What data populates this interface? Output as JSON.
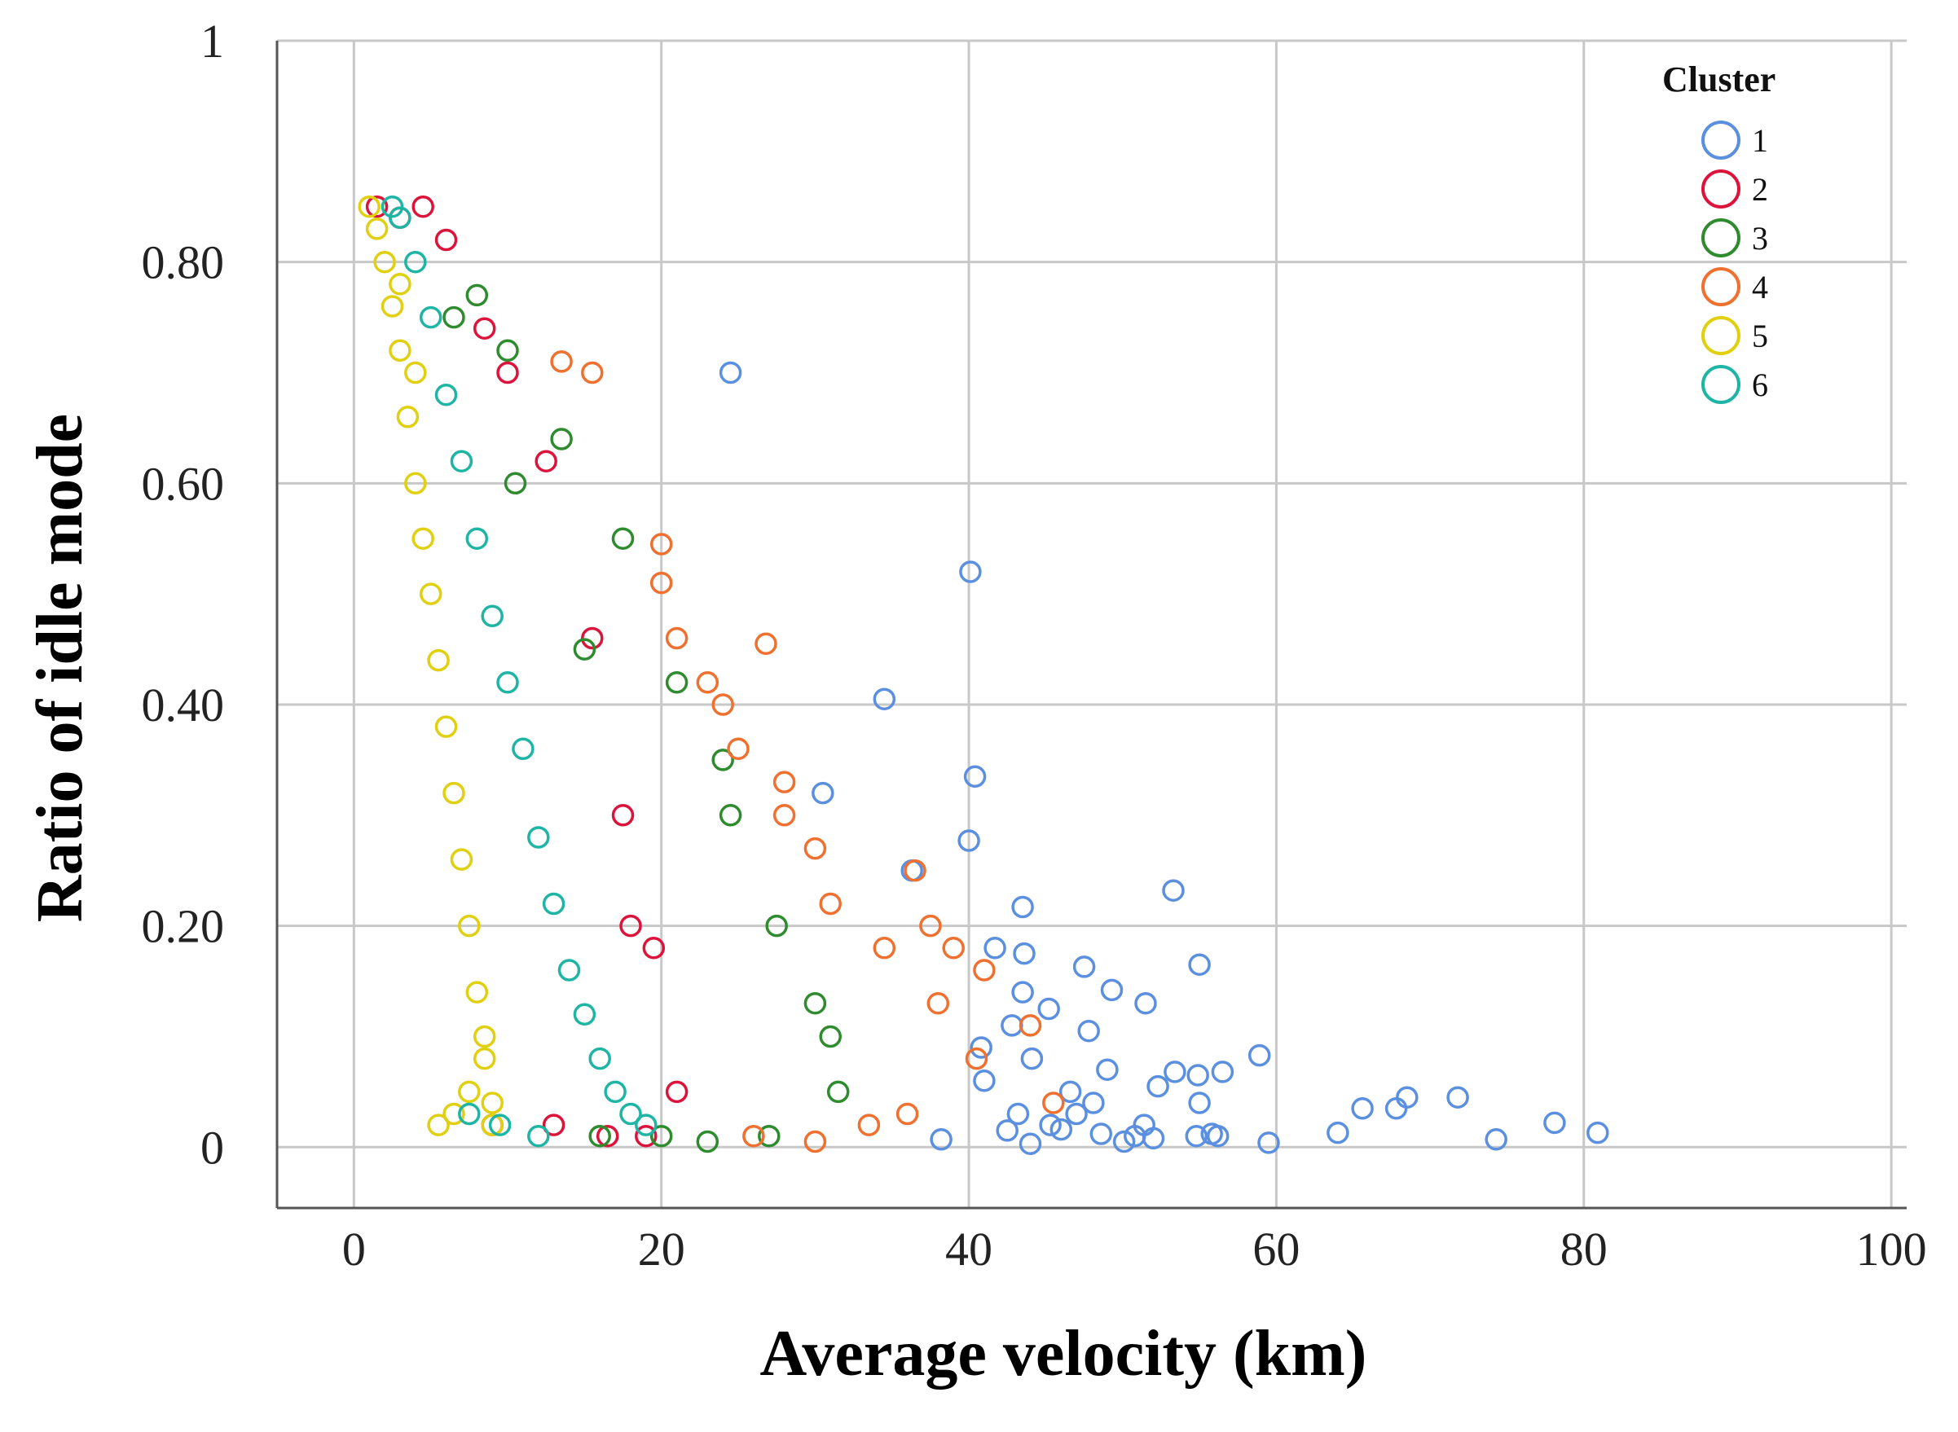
{
  "chart_data": {
    "type": "scatter",
    "title": "",
    "xlabel": "Average velocity (km)",
    "ylabel": "Ratio of idle mode",
    "xlim": [
      -5,
      101
    ],
    "ylim": [
      -0.055,
      1
    ],
    "x_ticks": [
      0,
      20,
      40,
      60,
      80,
      100
    ],
    "x_tick_labels": [
      "0",
      "20",
      "40",
      "60",
      "80",
      "100"
    ],
    "y_ticks": [
      0,
      0.2,
      0.4,
      0.6,
      0.8,
      1
    ],
    "y_tick_labels": [
      "0",
      "0.20",
      "0.40",
      "0.60",
      "0.80",
      "1"
    ],
    "grid": true,
    "marker": "hollow-circle",
    "legend": {
      "title": "Cluster",
      "position": "top-right",
      "items": [
        {
          "label": "1",
          "color": "#5b8fe0"
        },
        {
          "label": "2",
          "color": "#dc143c"
        },
        {
          "label": "3",
          "color": "#2e8b2e"
        },
        {
          "label": "4",
          "color": "#f07030"
        },
        {
          "label": "5",
          "color": "#e0d010"
        },
        {
          "label": "6",
          "color": "#1fb5a5"
        }
      ]
    },
    "series": [
      {
        "name": "1",
        "color": "#5b8fe0",
        "x": [
          24.5,
          40.1,
          34.5,
          30.5,
          40.4,
          40.0,
          36.3,
          43.5,
          53.3,
          55.0,
          47.5,
          43.5,
          51.5,
          49.3,
          45.2,
          47.8,
          58.9,
          56.5,
          54.9,
          53.4,
          49.0,
          52.3,
          42.8,
          44.1,
          46.6,
          48.1,
          40.8,
          51.4,
          55.0,
          68.5,
          71.8,
          67.8,
          65.6,
          78.1,
          80.9,
          74.3,
          64.0,
          59.5,
          56.2,
          54.8,
          52.0,
          50.1,
          48.6,
          45.3,
          43.2,
          41.0,
          38.2,
          42.5,
          46.0,
          44.0,
          50.8,
          55.8,
          47.0,
          41.7,
          43.6
        ],
        "y": [
          0.7,
          0.52,
          0.405,
          0.32,
          0.335,
          0.277,
          0.25,
          0.217,
          0.232,
          0.165,
          0.163,
          0.14,
          0.13,
          0.142,
          0.125,
          0.105,
          0.083,
          0.068,
          0.065,
          0.068,
          0.07,
          0.055,
          0.11,
          0.08,
          0.05,
          0.04,
          0.09,
          0.02,
          0.04,
          0.045,
          0.045,
          0.035,
          0.035,
          0.022,
          0.013,
          0.007,
          0.013,
          0.004,
          0.01,
          0.01,
          0.008,
          0.005,
          0.012,
          0.02,
          0.03,
          0.06,
          0.007,
          0.015,
          0.016,
          0.003,
          0.01,
          0.012,
          0.03,
          0.18,
          0.175
        ]
      },
      {
        "name": "2",
        "color": "#dc143c",
        "x": [
          1.5,
          4.5,
          8.5,
          12.5,
          15.5,
          17.5,
          19.5,
          21.0,
          9.0,
          13.0,
          16.5,
          19.0,
          3.0,
          6.0,
          10.0,
          18.0
        ],
        "y": [
          0.85,
          0.85,
          0.74,
          0.62,
          0.46,
          0.3,
          0.18,
          0.05,
          0.02,
          0.02,
          0.01,
          0.01,
          0.84,
          0.82,
          0.7,
          0.2
        ]
      },
      {
        "name": "3",
        "color": "#2e8b2e",
        "x": [
          6.5,
          8.0,
          10.0,
          13.5,
          17.5,
          21.0,
          24.5,
          27.5,
          30.0,
          31.5,
          16.0,
          20.0,
          23.0,
          27.0,
          10.5,
          15.0,
          24.0,
          31.0
        ],
        "y": [
          0.75,
          0.77,
          0.72,
          0.64,
          0.55,
          0.42,
          0.3,
          0.2,
          0.13,
          0.05,
          0.01,
          0.01,
          0.005,
          0.01,
          0.6,
          0.45,
          0.35,
          0.1
        ]
      },
      {
        "name": "4",
        "color": "#f07030",
        "x": [
          13.5,
          15.5,
          20.0,
          26.8,
          20.0,
          21.0,
          24.0,
          28.0,
          30.0,
          36.5,
          37.5,
          39.0,
          41.0,
          44.0,
          45.5,
          40.5,
          38.0,
          34.5,
          31.0,
          28.0,
          25.0,
          23.0,
          26.0,
          30.0,
          33.5,
          36.0
        ],
        "y": [
          0.71,
          0.7,
          0.545,
          0.455,
          0.51,
          0.46,
          0.4,
          0.33,
          0.27,
          0.25,
          0.2,
          0.18,
          0.16,
          0.11,
          0.04,
          0.08,
          0.13,
          0.18,
          0.22,
          0.3,
          0.36,
          0.42,
          0.01,
          0.005,
          0.02,
          0.03
        ]
      },
      {
        "name": "5",
        "color": "#e0d010",
        "x": [
          1.0,
          1.5,
          2.0,
          2.5,
          3.0,
          3.5,
          4.0,
          4.5,
          5.0,
          5.5,
          6.0,
          6.5,
          7.0,
          7.5,
          8.0,
          8.5,
          9.0,
          5.5,
          6.5,
          7.5,
          8.5,
          9.0,
          4.0,
          3.0
        ],
        "y": [
          0.85,
          0.83,
          0.8,
          0.76,
          0.72,
          0.66,
          0.6,
          0.55,
          0.5,
          0.44,
          0.38,
          0.32,
          0.26,
          0.2,
          0.14,
          0.08,
          0.02,
          0.02,
          0.03,
          0.05,
          0.1,
          0.04,
          0.7,
          0.78
        ]
      },
      {
        "name": "6",
        "color": "#1fb5a5",
        "x": [
          2.5,
          3.0,
          4.0,
          5.0,
          6.0,
          7.0,
          8.0,
          9.0,
          10.0,
          11.0,
          12.0,
          13.0,
          14.0,
          15.0,
          16.0,
          17.0,
          18.0,
          19.0,
          12.0,
          9.5,
          7.5
        ],
        "y": [
          0.85,
          0.84,
          0.8,
          0.75,
          0.68,
          0.62,
          0.55,
          0.48,
          0.42,
          0.36,
          0.28,
          0.22,
          0.16,
          0.12,
          0.08,
          0.05,
          0.03,
          0.02,
          0.01,
          0.02,
          0.03
        ]
      }
    ]
  }
}
